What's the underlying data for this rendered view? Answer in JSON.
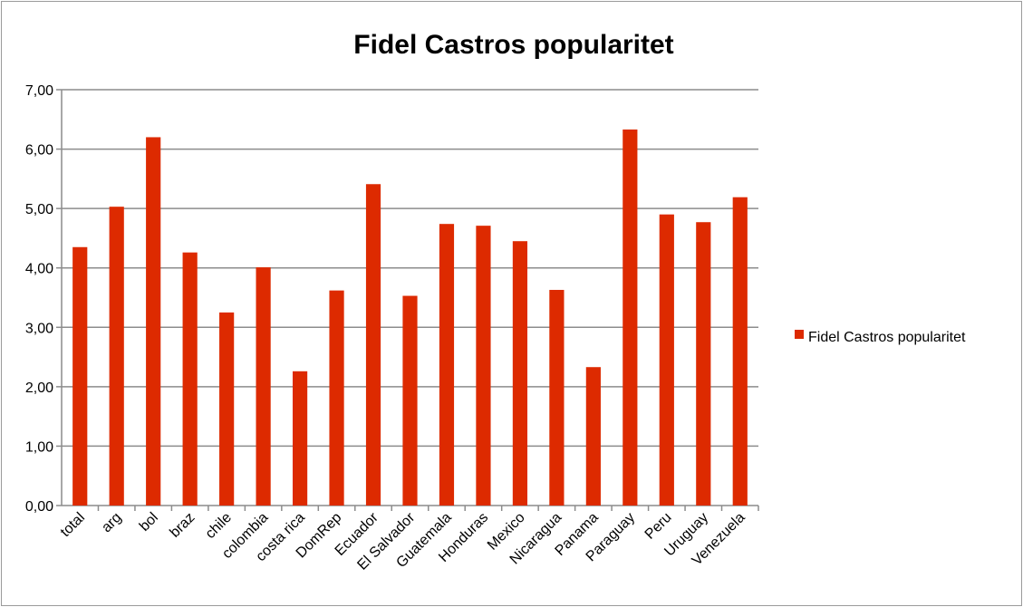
{
  "chart_data": {
    "type": "bar",
    "title": "Fidel Castros popularitet",
    "xlabel": "",
    "ylabel": "",
    "categories": [
      "total",
      "arg",
      "bol",
      "braz",
      "chile",
      "colombia",
      "costa rica",
      "DomRep",
      "Ecuador",
      "El Salvador",
      "Guatemala",
      "Honduras",
      "Mexico",
      "Nicaragua",
      "Panama",
      "Paraguay",
      "Peru",
      "Uruguay",
      "Venezuela"
    ],
    "series": [
      {
        "name": "Fidel Castros popularitet",
        "color": "#dd2a00",
        "values": [
          4.35,
          5.03,
          6.2,
          4.26,
          3.25,
          4.01,
          2.26,
          3.62,
          5.41,
          3.53,
          4.74,
          4.71,
          4.45,
          3.63,
          2.33,
          6.33,
          4.9,
          4.77,
          5.19
        ]
      }
    ],
    "ylim": [
      0,
      7
    ],
    "yticks": [
      "0,00",
      "1,00",
      "2,00",
      "3,00",
      "4,00",
      "5,00",
      "6,00",
      "7,00"
    ],
    "grid": true,
    "legend_position": "right"
  }
}
